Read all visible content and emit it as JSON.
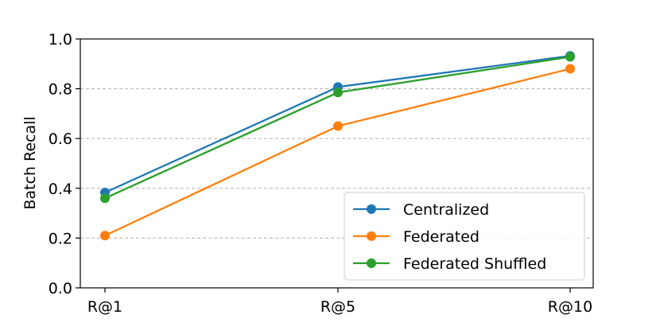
{
  "chart_data": {
    "type": "line",
    "categories": [
      "R@1",
      "R@5",
      "R@10"
    ],
    "series": [
      {
        "name": "Centralized",
        "values": [
          0.383,
          0.807,
          0.932
        ],
        "color": "#1f77b4"
      },
      {
        "name": "Federated",
        "values": [
          0.21,
          0.65,
          0.88
        ],
        "color": "#ff7f0e"
      },
      {
        "name": "Federated Shuffled",
        "values": [
          0.36,
          0.785,
          0.928
        ],
        "color": "#2ca02c"
      }
    ],
    "title": "",
    "xlabel": "",
    "ylabel": "Batch Recall",
    "ylim": [
      0,
      1.0
    ],
    "yticks": [
      "0.0",
      "0.2",
      "0.4",
      "0.6",
      "0.8",
      "1.0"
    ],
    "yticks_values": [
      0,
      0.2,
      0.4,
      0.6,
      0.8,
      1.0
    ],
    "grid": "y-dashed",
    "legend_position": "lower-right"
  }
}
